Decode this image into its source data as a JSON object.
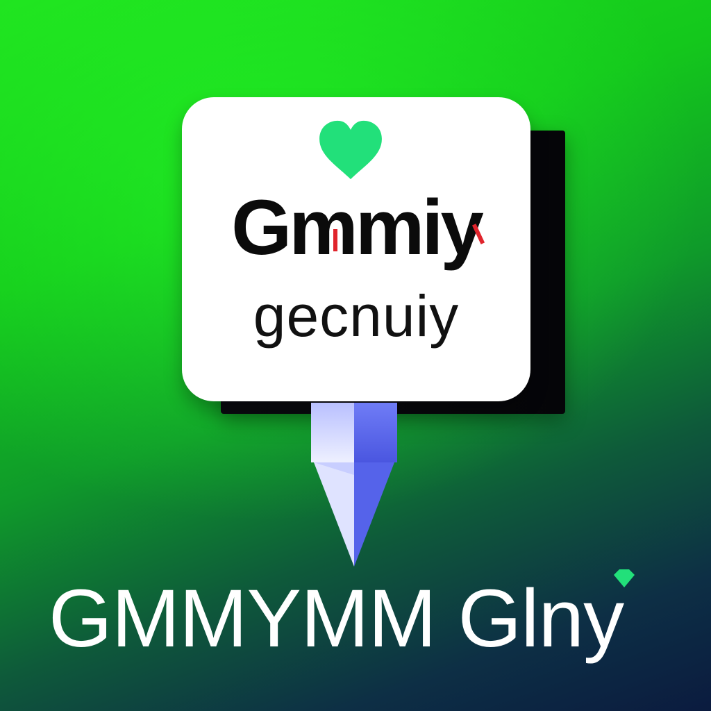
{
  "sign": {
    "title": "Gmmiy",
    "subtitle": "gecnuiy"
  },
  "wordmark": {
    "text": "GMMYMM Glny"
  },
  "icons": {
    "heart": "heart-icon",
    "accent_dot": "gem-icon"
  },
  "colors": {
    "background_top": "#1fe21f",
    "background_bottom": "#0b1b3f",
    "card": "#ffffff",
    "heart": "#22e07a",
    "accent_red": "#e0242c",
    "post": "#6a78f0",
    "wordmark": "#ffffff"
  }
}
